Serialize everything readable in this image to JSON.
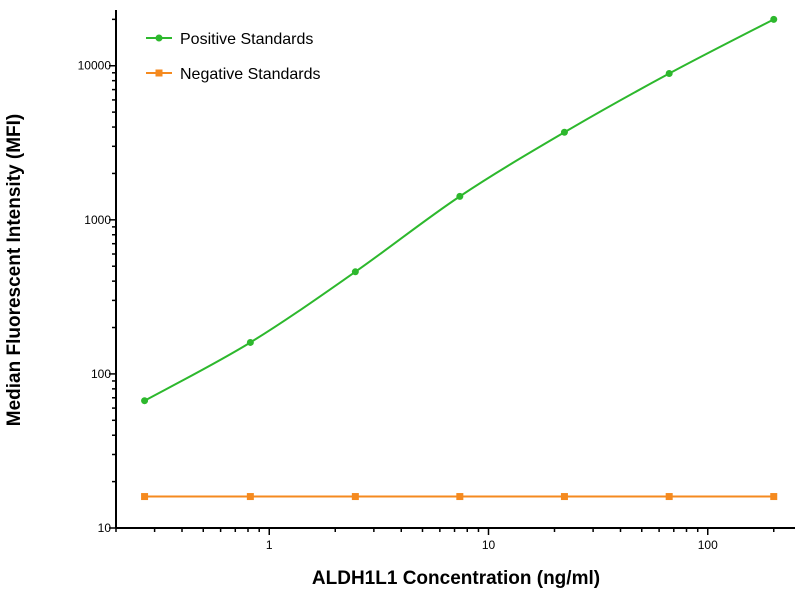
{
  "chart_data": {
    "type": "line",
    "title": "",
    "xlabel": "ALDH1L1 Concentration (ng/ml)",
    "ylabel": "Median Fluorescent Intensity (MFI)",
    "xscale": "log",
    "yscale": "log",
    "xlim": [
      0.2,
      250
    ],
    "ylim": [
      10,
      23000
    ],
    "x_ticks": [
      1,
      10,
      100
    ],
    "x_tick_labels": [
      "1",
      "10",
      "100"
    ],
    "y_ticks": [
      10,
      100,
      1000,
      10000
    ],
    "y_tick_labels": [
      "10",
      "100",
      "1000",
      "10000"
    ],
    "grid": false,
    "legend_position": "top-left",
    "series": [
      {
        "name": "Positive Standards",
        "color": "#2db82d",
        "marker": "circle",
        "x": [
          0.27,
          0.82,
          2.47,
          7.4,
          22.2,
          66.7,
          200
        ],
        "y": [
          67,
          160,
          460,
          1420,
          3700,
          8900,
          20000
        ]
      },
      {
        "name": "Negative Standards",
        "color": "#f58a1f",
        "marker": "square",
        "x": [
          0.27,
          0.82,
          2.47,
          7.4,
          22.2,
          66.7,
          200
        ],
        "y": [
          16,
          16,
          16,
          16,
          16,
          16,
          16
        ]
      }
    ]
  }
}
